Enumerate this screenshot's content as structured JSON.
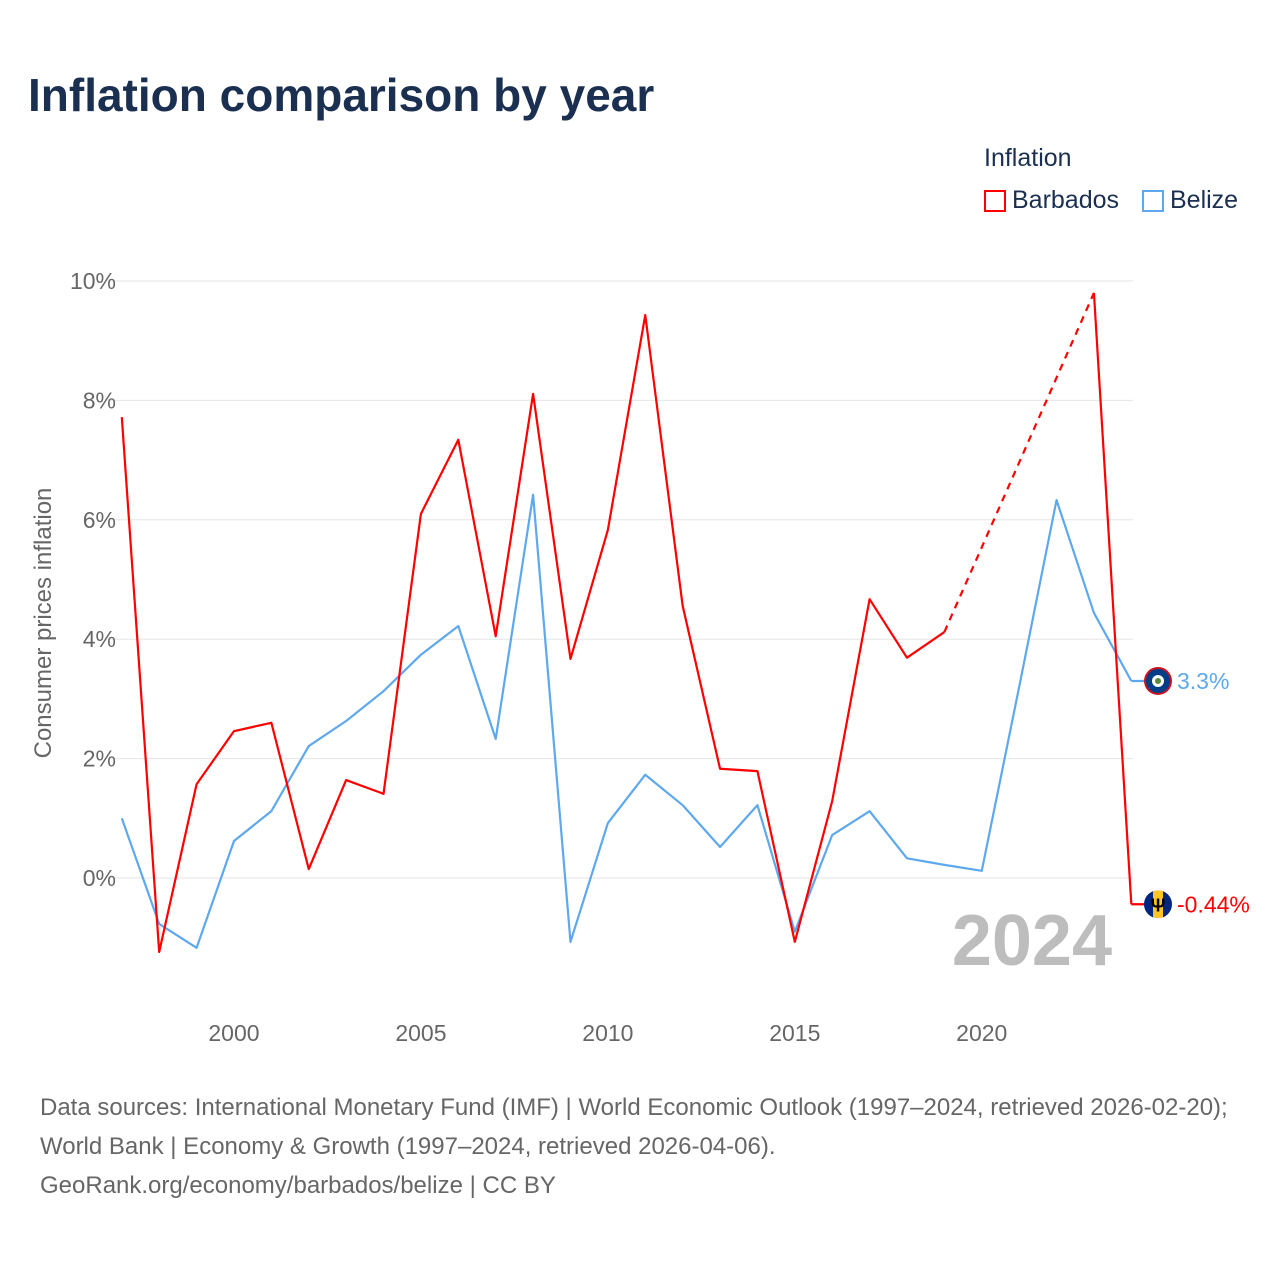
{
  "title": "Inflation comparison by year",
  "legend": {
    "title": "Inflation",
    "items": [
      {
        "name": "Barbados",
        "color": "#ff0000"
      },
      {
        "name": "Belize",
        "color": "#5ea8ee"
      }
    ]
  },
  "source": {
    "line1": "Data sources: International Monetary Fund (IMF) | World Economic Outlook (1997–2024, retrieved 2026-02-20); World Bank | Economy & Growth (1997–2024, retrieved 2026-04-06).",
    "line2": "GeoRank.org/economy/barbados/belize | CC BY"
  },
  "chart_data": {
    "type": "line",
    "title": "Inflation comparison by year",
    "ylabel": "Consumer prices inflation",
    "xlabel": "",
    "year_watermark": "2024",
    "ylim": [
      -2,
      10
    ],
    "xlim": [
      1997,
      2024
    ],
    "yticks": [
      {
        "v": 0,
        "label": "0%"
      },
      {
        "v": 2,
        "label": "2%"
      },
      {
        "v": 4,
        "label": "4%"
      },
      {
        "v": 6,
        "label": "6%"
      },
      {
        "v": 8,
        "label": "8%"
      },
      {
        "v": 10,
        "label": "10%"
      }
    ],
    "xticks": [
      {
        "v": 2000,
        "label": "2000"
      },
      {
        "v": 2005,
        "label": "2005"
      },
      {
        "v": 2010,
        "label": "2010"
      },
      {
        "v": 2015,
        "label": "2015"
      },
      {
        "v": 2020,
        "label": "2020"
      }
    ],
    "x": [
      1997,
      1998,
      1999,
      2000,
      2001,
      2002,
      2003,
      2004,
      2005,
      2006,
      2007,
      2008,
      2009,
      2010,
      2011,
      2012,
      2013,
      2014,
      2015,
      2016,
      2017,
      2018,
      2019,
      2020,
      2021,
      2022,
      2023,
      2024
    ],
    "series": [
      {
        "name": "Barbados",
        "color": "#ff0000",
        "end_label": "-0.44%",
        "values": [
          7.72,
          -1.24,
          1.57,
          2.46,
          2.6,
          0.15,
          1.64,
          1.41,
          6.1,
          7.34,
          4.05,
          8.11,
          3.67,
          5.83,
          9.43,
          4.56,
          1.83,
          1.79,
          -1.07,
          1.29,
          4.67,
          3.69,
          4.12,
          null,
          null,
          null,
          9.8,
          -0.44
        ]
      },
      {
        "name": "Belize",
        "color": "#5ea8ee",
        "end_label": "3.3%",
        "values": [
          1.0,
          -0.77,
          -1.17,
          0.62,
          1.12,
          2.21,
          2.63,
          3.13,
          3.74,
          4.22,
          2.33,
          6.42,
          -1.07,
          0.92,
          1.73,
          1.22,
          0.52,
          1.22,
          -0.9,
          0.72,
          1.12,
          0.33,
          0.22,
          0.12,
          3.2,
          6.33,
          4.44,
          3.3
        ]
      }
    ],
    "grid": true,
    "legend_position": "top-right"
  }
}
